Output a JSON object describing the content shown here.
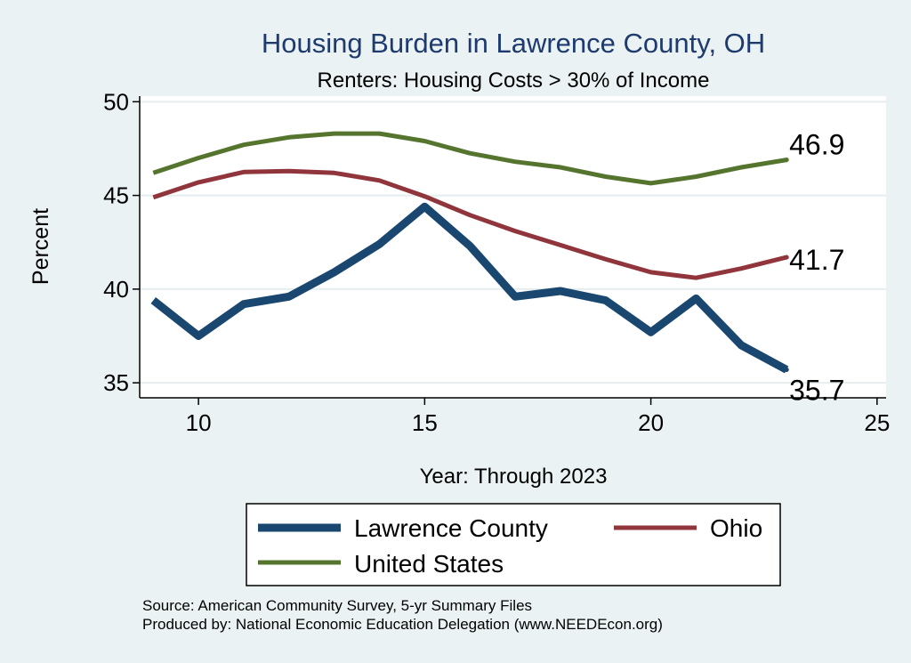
{
  "chart_data": {
    "type": "line",
    "title": "Housing Burden in Lawrence County, OH",
    "subtitle": "Renters: Housing Costs > 30% of Income",
    "xlabel": "Year: Through 2023",
    "ylabel": "Percent",
    "xlim": [
      8.7,
      25.2
    ],
    "ylim": [
      34.2,
      50.3
    ],
    "xticks": [
      10,
      15,
      20,
      25
    ],
    "yticks": [
      35,
      40,
      45,
      50
    ],
    "grid": true,
    "legend_position": "bottom",
    "series": [
      {
        "name": "Lawrence County",
        "color": "#1a476f",
        "emphasis": "thick",
        "x": [
          9,
          10,
          11,
          12,
          13,
          14,
          15,
          16,
          17,
          18,
          19,
          20,
          21,
          22,
          23
        ],
        "values": [
          39.4,
          37.5,
          39.2,
          39.6,
          40.9,
          42.4,
          44.4,
          42.3,
          39.6,
          39.9,
          39.4,
          37.7,
          39.5,
          37.0,
          35.7
        ],
        "end_label": "35.7"
      },
      {
        "name": "Ohio",
        "color": "#90353b",
        "emphasis": "medium",
        "x": [
          9,
          10,
          11,
          12,
          13,
          14,
          15,
          16,
          17,
          18,
          19,
          20,
          21,
          22,
          23
        ],
        "values": [
          44.9,
          45.7,
          46.25,
          46.3,
          46.2,
          45.8,
          44.95,
          43.95,
          43.1,
          42.35,
          41.6,
          40.9,
          40.6,
          41.1,
          41.7
        ],
        "end_label": "41.7"
      },
      {
        "name": "United States",
        "color": "#55752f",
        "emphasis": "medium",
        "x": [
          9,
          10,
          11,
          12,
          13,
          14,
          15,
          16,
          17,
          18,
          19,
          20,
          21,
          22,
          23
        ],
        "values": [
          46.2,
          47.0,
          47.7,
          48.1,
          48.3,
          48.3,
          47.9,
          47.25,
          46.8,
          46.5,
          46.0,
          45.65,
          46.0,
          46.5,
          46.9
        ],
        "end_label": "46.9"
      }
    ],
    "notes": [
      "Source: American Community Survey, 5-yr Summary Files",
      "Produced by: National Economic Education Delegation (www.NEEDEcon.org)"
    ]
  },
  "colors": {
    "page_background": "#eaf2f3",
    "plot_background": "#ffffff",
    "title": "#1e3a6e",
    "gridline": "#e4eeef"
  }
}
